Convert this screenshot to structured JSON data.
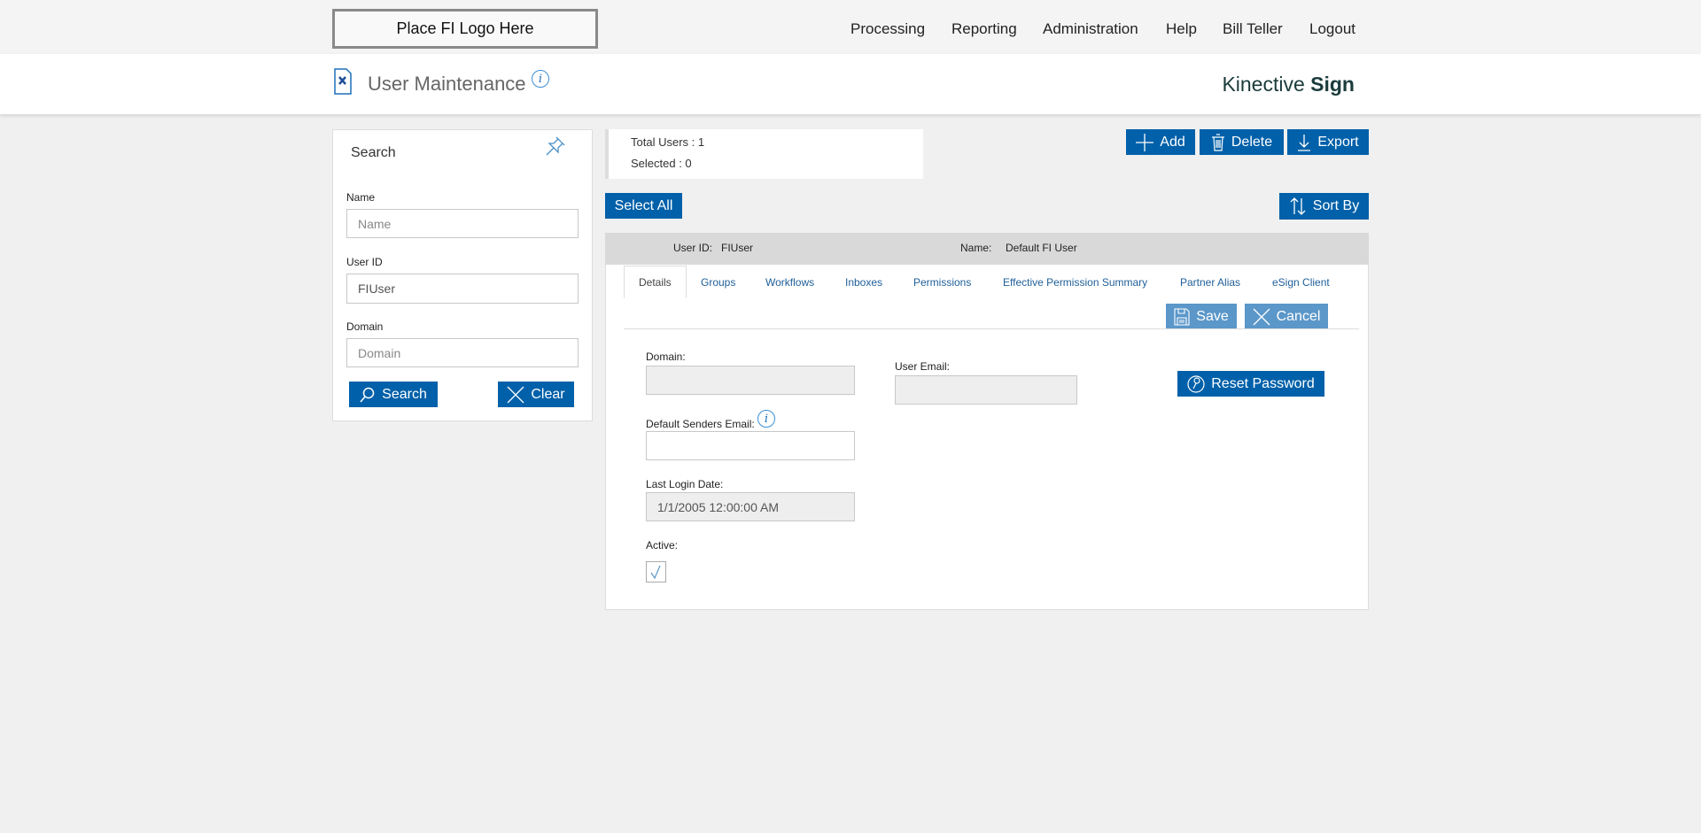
{
  "header": {
    "logo": "Place FI Logo Here",
    "nav": [
      "Processing",
      "Reporting",
      "Administration",
      "Help",
      "Bill Teller",
      "Logout"
    ]
  },
  "page": {
    "title": "User Maintenance",
    "brand_light": "Kinective",
    "brand_bold": "Sign"
  },
  "search": {
    "title": "Search",
    "name_label": "Name",
    "name_placeholder": "Name",
    "name_value": "",
    "userid_label": "User ID",
    "userid_value": "FIUser",
    "domain_label": "Domain",
    "domain_placeholder": "Domain",
    "search_btn": "Search",
    "clear_btn": "Clear"
  },
  "stats": {
    "total": "Total Users : 1",
    "selected": "Selected : 0"
  },
  "toolbar": {
    "add": "Add",
    "delete": "Delete",
    "export": "Export",
    "select_all": "Select All",
    "sort_by": "Sort By"
  },
  "user": {
    "id_label": "User ID:",
    "id_value": "FIUser",
    "name_label": "Name:",
    "name_value": "Default FI User"
  },
  "tabs": [
    "Details",
    "Groups",
    "Workflows",
    "Inboxes",
    "Permissions",
    "Effective Permission Summary",
    "Partner Alias",
    "eSign Client"
  ],
  "details": {
    "save": "Save",
    "cancel": "Cancel",
    "domain_label": "Domain:",
    "domain_value": "",
    "email_label": "User Email:",
    "email_value": "",
    "reset": "Reset Password",
    "senders_label": "Default Senders Email:",
    "senders_value": "",
    "login_label": "Last Login Date:",
    "login_value": "1/1/2005 12:00:00 AM",
    "active_label": "Active:",
    "active": true
  },
  "colors": {
    "primary": "#0060a9",
    "disabled_button": "#5b97c9",
    "link": "#1f5f99"
  }
}
